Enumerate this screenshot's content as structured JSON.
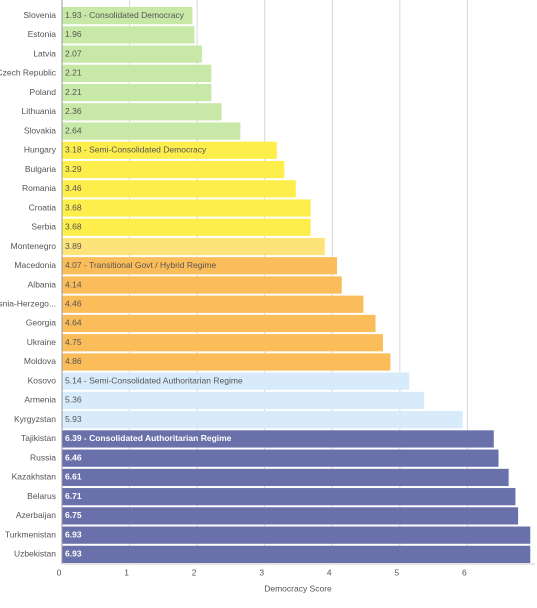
{
  "chart_data": {
    "type": "bar",
    "orientation": "horizontal",
    "x_label": "Democracy Score",
    "categories": [
      "Slovenia",
      "Estonia",
      "Latvia",
      "Czech Republic",
      "Poland",
      "Lithuania",
      "Slovakia",
      "Hungary",
      "Bulgaria",
      "Romania",
      "Croatia",
      "Serbia",
      "Montenegro",
      "Macedonia",
      "Albania",
      "Bosnia-Herzego...",
      "Georgia",
      "Ukraine",
      "Moldova",
      "Kosovo",
      "Armenia",
      "Kyrgyzstan",
      "Tajikistan",
      "Russia",
      "Kazakhstan",
      "Belarus",
      "Azerbaijan",
      "Turkmenistan",
      "Uzbekistan"
    ],
    "values": [
      1.93,
      1.96,
      2.07,
      2.21,
      2.21,
      2.36,
      2.64,
      3.18,
      3.29,
      3.46,
      3.68,
      3.68,
      3.89,
      4.07,
      4.14,
      4.46,
      4.64,
      4.75,
      4.86,
      5.14,
      5.36,
      5.93,
      6.39,
      6.46,
      6.61,
      6.71,
      6.75,
      6.93,
      6.93
    ],
    "value_labels": [
      "1.93 - Consolidated Democracy",
      "1.96",
      "2.07",
      "2.21",
      "2.21",
      "2.36",
      "2.64",
      "3.18 - Semi-Consolidated Democracy",
      "3.29",
      "3.46",
      "3.68",
      "3.68",
      "3.89",
      "4.07 - Transitional Govt / Hybrid Regime",
      "4.14",
      "4.46",
      "4.64",
      "4.75",
      "4.86",
      "5.14 - Semi-Consolidated Authoritarian Regime",
      "5.36",
      "5.93",
      "6.39 - Consolidated Authoritarian Regime",
      "6.46",
      "6.61",
      "6.71",
      "6.75",
      "6.93",
      "6.93"
    ],
    "colors": [
      "#c8e8a8",
      "#c8e8a8",
      "#c8e8a8",
      "#c8e8a8",
      "#c8e8a8",
      "#c8e8a8",
      "#c8e8a8",
      "#fdee4c",
      "#fdee4c",
      "#fdee4c",
      "#fdee4c",
      "#fdee4c",
      "#fde47a",
      "#fbbd5a",
      "#fbbd5a",
      "#fbbd5a",
      "#fbbd5a",
      "#fbbd5a",
      "#fbbd5a",
      "#d8ebfb",
      "#d8ebfb",
      "#d8ebfb",
      "#6a71aa",
      "#6a71aa",
      "#6a71aa",
      "#6a71aa",
      "#6a71aa",
      "#6a71aa",
      "#6a71aa"
    ],
    "xlim": [
      0,
      7
    ],
    "xticks": [
      0,
      1,
      2,
      3,
      4,
      5,
      6
    ],
    "grid": true
  }
}
